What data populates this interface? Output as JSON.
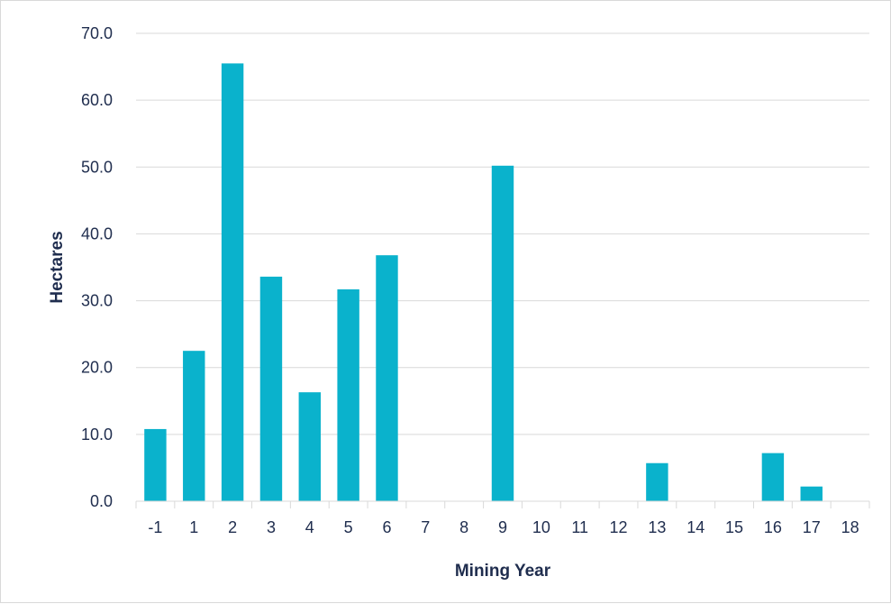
{
  "chart_data": {
    "type": "bar",
    "categories": [
      "-1",
      "1",
      "2",
      "3",
      "4",
      "5",
      "6",
      "7",
      "8",
      "9",
      "10",
      "11",
      "12",
      "13",
      "14",
      "15",
      "16",
      "17",
      "18"
    ],
    "values": [
      10.8,
      22.5,
      65.5,
      33.6,
      16.3,
      31.7,
      36.8,
      0,
      0,
      50.2,
      0,
      0,
      0,
      5.7,
      0,
      0,
      7.2,
      2.2,
      0
    ],
    "xlabel": "Mining Year",
    "ylabel": "Hectares",
    "ylim": [
      0,
      70
    ],
    "yticks": [
      "0.0",
      "10.0",
      "20.0",
      "30.0",
      "40.0",
      "50.0",
      "60.0",
      "70.0"
    ],
    "grid": true,
    "legend": "none",
    "colors": {
      "bar": "#0ab2cc",
      "gridline": "#d9d9d9",
      "text": "#1f2d4e"
    }
  }
}
